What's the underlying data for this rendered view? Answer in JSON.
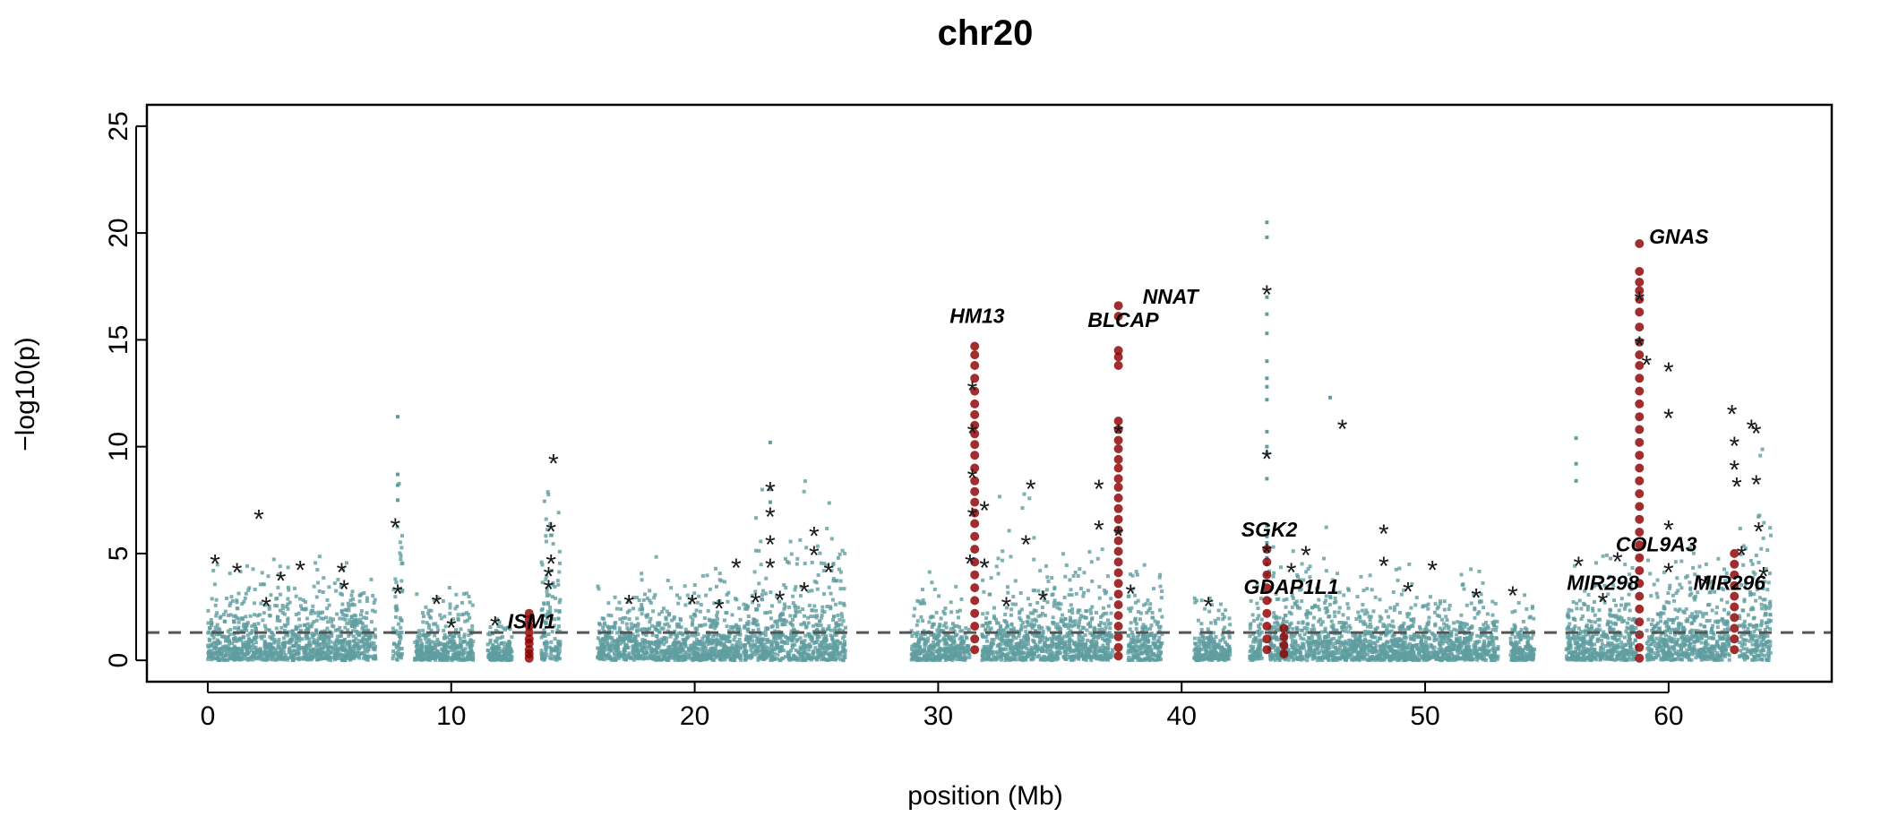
{
  "chart_data": {
    "type": "scatter",
    "title": "chr20",
    "xlabel": "position (Mb)",
    "ylabel": "−log10(p)",
    "xlim": [
      -2.5,
      66.7
    ],
    "ylim": [
      -1.0,
      26.0
    ],
    "x_ticks": [
      0,
      10,
      20,
      30,
      40,
      50,
      60
    ],
    "y_ticks": [
      0,
      5,
      10,
      15,
      20,
      25
    ],
    "threshold": 1.3,
    "grid": false,
    "legend": "none",
    "colors": {
      "background_points": "#5f9ea0",
      "highlight_points": "#8b0000",
      "threshold_line": "#555555",
      "star_marker": "#1a1a1a"
    },
    "marker_legend": {
      "star": "*"
    },
    "tracks": [
      {
        "start": 0.0,
        "end": 6.9,
        "typical": 1.8,
        "max": 5.0
      },
      {
        "start": 7.6,
        "end": 8.0,
        "typical": 3.0,
        "max": 11.4
      },
      {
        "start": 8.5,
        "end": 10.9,
        "typical": 1.2,
        "max": 3.5
      },
      {
        "start": 11.5,
        "end": 12.5,
        "typical": 1.0,
        "max": 2.0
      },
      {
        "start": 13.7,
        "end": 14.5,
        "typical": 3.0,
        "max": 9.0
      },
      {
        "start": 16.0,
        "end": 19.5,
        "typical": 1.5,
        "max": 5.5
      },
      {
        "start": 19.5,
        "end": 21.9,
        "typical": 1.8,
        "max": 4.5
      },
      {
        "start": 22.0,
        "end": 26.2,
        "typical": 2.2,
        "max": 10.2
      },
      {
        "start": 28.9,
        "end": 31.3,
        "typical": 1.3,
        "max": 4.7
      },
      {
        "start": 31.8,
        "end": 37.2,
        "typical": 1.9,
        "max": 8.4
      },
      {
        "start": 37.8,
        "end": 39.2,
        "typical": 1.7,
        "max": 4.5
      },
      {
        "start": 40.5,
        "end": 42.0,
        "typical": 1.2,
        "max": 3.0
      },
      {
        "start": 42.8,
        "end": 43.3,
        "typical": 1.5,
        "max": 3.5
      },
      {
        "start": 43.6,
        "end": 46.5,
        "typical": 2.0,
        "max": 6.5
      },
      {
        "start": 46.5,
        "end": 53.0,
        "typical": 1.5,
        "max": 4.6
      },
      {
        "start": 53.5,
        "end": 54.5,
        "typical": 1.2,
        "max": 7.0
      },
      {
        "start": 55.8,
        "end": 58.7,
        "typical": 1.8,
        "max": 5.0
      },
      {
        "start": 59.1,
        "end": 62.5,
        "typical": 2.1,
        "max": 5.5
      },
      {
        "start": 62.9,
        "end": 64.2,
        "typical": 3.0,
        "max": 13.0
      }
    ],
    "peaks": [
      {
        "x": 43.5,
        "values": [
          20.5,
          19.8,
          17.0,
          16.2,
          15.3,
          14.0,
          13.2,
          12.8,
          12.2,
          10.7,
          10.0,
          9.7,
          8.5,
          6.3,
          5.8,
          5.5,
          4.8,
          4.5,
          4.0
        ]
      },
      {
        "x": 46.1,
        "values": [
          12.3
        ]
      },
      {
        "x": 56.2,
        "values": [
          10.4,
          9.2,
          8.4
        ]
      },
      {
        "x": 7.8,
        "values": [
          11.4,
          8.7,
          8.2,
          7.5
        ]
      },
      {
        "x": 23.1,
        "values": [
          10.2,
          8.0,
          7.4
        ]
      }
    ],
    "highlights": [
      {
        "x": 13.2,
        "values": [
          2.2,
          1.9,
          1.6,
          1.3,
          1.0,
          0.8,
          0.5,
          0.3,
          0.1
        ]
      },
      {
        "x": 31.5,
        "values": [
          14.7,
          14.3,
          13.8,
          13.2,
          12.6,
          12.0,
          11.5,
          11.0,
          10.6,
          10.1,
          9.6,
          9.0,
          8.4,
          7.9,
          7.4,
          6.9,
          6.4,
          5.8,
          5.2,
          4.6,
          4.0,
          3.4,
          2.8,
          2.2,
          1.6,
          1.0,
          0.5
        ]
      },
      {
        "x": 37.4,
        "values": [
          16.6,
          16.1,
          14.5,
          14.2,
          13.8,
          11.2,
          10.8,
          10.3,
          9.9,
          9.4,
          9.0,
          8.5,
          8.1,
          7.6,
          7.1,
          6.6,
          6.1,
          5.6,
          5.1,
          4.6,
          4.1,
          3.6,
          3.1,
          2.6,
          2.1,
          1.6,
          1.1,
          0.6,
          0.2
        ]
      },
      {
        "x": 43.5,
        "values": [
          5.2,
          4.6,
          4.0,
          3.4,
          2.8,
          2.2,
          1.6,
          1.0,
          0.5
        ]
      },
      {
        "x": 44.2,
        "values": [
          1.5,
          1.1,
          0.7,
          0.3
        ]
      },
      {
        "x": 58.8,
        "values": [
          19.5,
          18.2,
          17.7,
          17.3,
          16.9,
          16.3,
          15.6,
          14.9,
          14.3,
          13.8,
          13.2,
          12.6,
          12.0,
          11.4,
          10.8,
          10.2,
          9.6,
          9.0,
          8.4,
          7.8,
          7.2,
          6.6,
          6.0,
          5.4,
          4.8,
          4.2,
          3.6,
          3.0,
          2.4,
          1.8,
          1.2,
          0.6,
          0.1
        ]
      },
      {
        "x": 62.7,
        "values": [
          5.0,
          4.5,
          4.0,
          3.5,
          3.0,
          2.5,
          2.0,
          1.5,
          1.0,
          0.5
        ]
      }
    ],
    "stars": [
      {
        "x": 0.3,
        "y": 4.6
      },
      {
        "x": 1.2,
        "y": 4.2
      },
      {
        "x": 2.1,
        "y": 6.7
      },
      {
        "x": 2.4,
        "y": 2.6
      },
      {
        "x": 3.0,
        "y": 3.8
      },
      {
        "x": 3.8,
        "y": 4.3
      },
      {
        "x": 5.5,
        "y": 4.2
      },
      {
        "x": 5.6,
        "y": 3.4
      },
      {
        "x": 7.7,
        "y": 6.3
      },
      {
        "x": 7.8,
        "y": 3.2
      },
      {
        "x": 9.4,
        "y": 2.7
      },
      {
        "x": 10.0,
        "y": 1.6
      },
      {
        "x": 11.8,
        "y": 1.7
      },
      {
        "x": 14.2,
        "y": 9.3
      },
      {
        "x": 14.1,
        "y": 6.1
      },
      {
        "x": 14.1,
        "y": 4.6
      },
      {
        "x": 14.0,
        "y": 4.0
      },
      {
        "x": 14.0,
        "y": 3.4
      },
      {
        "x": 17.3,
        "y": 2.7
      },
      {
        "x": 19.9,
        "y": 2.7
      },
      {
        "x": 21.0,
        "y": 2.5
      },
      {
        "x": 21.7,
        "y": 4.4
      },
      {
        "x": 22.5,
        "y": 2.8
      },
      {
        "x": 23.1,
        "y": 8.0
      },
      {
        "x": 23.1,
        "y": 6.8
      },
      {
        "x": 23.1,
        "y": 5.5
      },
      {
        "x": 23.1,
        "y": 4.4
      },
      {
        "x": 23.5,
        "y": 2.9
      },
      {
        "x": 24.5,
        "y": 3.3
      },
      {
        "x": 24.9,
        "y": 5.9
      },
      {
        "x": 24.9,
        "y": 5.0
      },
      {
        "x": 25.5,
        "y": 4.2
      },
      {
        "x": 31.4,
        "y": 12.7
      },
      {
        "x": 31.4,
        "y": 10.7
      },
      {
        "x": 31.4,
        "y": 8.6
      },
      {
        "x": 31.4,
        "y": 6.8
      },
      {
        "x": 31.3,
        "y": 4.6
      },
      {
        "x": 31.9,
        "y": 7.1
      },
      {
        "x": 31.9,
        "y": 4.4
      },
      {
        "x": 32.8,
        "y": 2.6
      },
      {
        "x": 33.8,
        "y": 8.1
      },
      {
        "x": 33.6,
        "y": 5.5
      },
      {
        "x": 34.3,
        "y": 2.9
      },
      {
        "x": 36.6,
        "y": 8.1
      },
      {
        "x": 36.6,
        "y": 6.2
      },
      {
        "x": 37.4,
        "y": 10.7
      },
      {
        "x": 37.4,
        "y": 5.9
      },
      {
        "x": 37.9,
        "y": 3.2
      },
      {
        "x": 41.1,
        "y": 2.6
      },
      {
        "x": 43.5,
        "y": 17.2
      },
      {
        "x": 43.5,
        "y": 9.5
      },
      {
        "x": 43.5,
        "y": 5.1
      },
      {
        "x": 44.5,
        "y": 4.2
      },
      {
        "x": 45.1,
        "y": 5.0
      },
      {
        "x": 46.6,
        "y": 10.9
      },
      {
        "x": 48.3,
        "y": 6.0
      },
      {
        "x": 48.3,
        "y": 4.5
      },
      {
        "x": 49.3,
        "y": 3.3
      },
      {
        "x": 50.3,
        "y": 4.3
      },
      {
        "x": 52.1,
        "y": 3.0
      },
      {
        "x": 53.6,
        "y": 3.1
      },
      {
        "x": 56.3,
        "y": 4.5
      },
      {
        "x": 57.3,
        "y": 2.8
      },
      {
        "x": 57.9,
        "y": 4.7
      },
      {
        "x": 58.8,
        "y": 16.9
      },
      {
        "x": 58.8,
        "y": 14.8
      },
      {
        "x": 59.1,
        "y": 13.9
      },
      {
        "x": 60.0,
        "y": 13.6
      },
      {
        "x": 60.0,
        "y": 11.4
      },
      {
        "x": 60.0,
        "y": 6.2
      },
      {
        "x": 60.0,
        "y": 4.2
      },
      {
        "x": 61.5,
        "y": 3.6
      },
      {
        "x": 62.6,
        "y": 11.6
      },
      {
        "x": 62.7,
        "y": 10.1
      },
      {
        "x": 62.7,
        "y": 9.0
      },
      {
        "x": 62.8,
        "y": 8.2
      },
      {
        "x": 63.0,
        "y": 5.0
      },
      {
        "x": 63.4,
        "y": 10.9
      },
      {
        "x": 63.6,
        "y": 10.7
      },
      {
        "x": 63.6,
        "y": 8.3
      },
      {
        "x": 63.7,
        "y": 6.1
      },
      {
        "x": 63.9,
        "y": 4.0
      }
    ],
    "annotations": [
      {
        "text": "HM13",
        "x": 31.6,
        "y": 15.8,
        "anchor": "middle"
      },
      {
        "text": "BLCAP",
        "x": 37.6,
        "y": 15.6,
        "anchor": "middle"
      },
      {
        "text": "NNAT",
        "x": 38.4,
        "y": 16.7,
        "anchor": "start"
      },
      {
        "text": "GNAS",
        "x": 59.2,
        "y": 19.5,
        "anchor": "start"
      },
      {
        "text": "SGK2",
        "x": 43.6,
        "y": 5.8,
        "anchor": "middle"
      },
      {
        "text": "GDAP1L1",
        "x": 44.5,
        "y": 3.1,
        "anchor": "middle"
      },
      {
        "text": "MIR298",
        "x": 57.3,
        "y": 3.3,
        "anchor": "middle"
      },
      {
        "text": "COL9A3",
        "x": 59.5,
        "y": 5.1,
        "anchor": "middle"
      },
      {
        "text": "MIR296",
        "x": 62.5,
        "y": 3.3,
        "anchor": "middle"
      },
      {
        "text": "ISM1",
        "x": 13.3,
        "y": 1.5,
        "anchor": "middle"
      }
    ]
  }
}
